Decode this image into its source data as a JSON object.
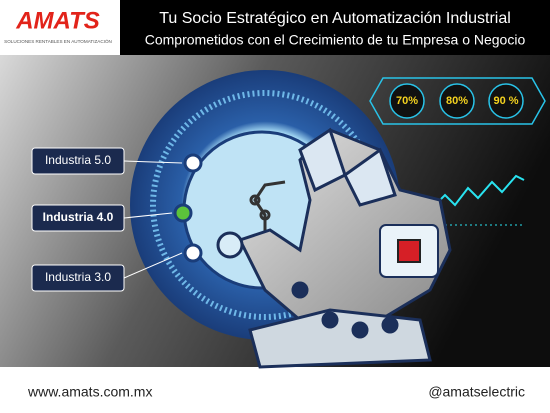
{
  "header": {
    "logo": "AMATS",
    "logo_tagline": "SOLUCIONES RENTABLES EN AUTOMATIZACIÓN",
    "title": "Tu Socio Estratégico en Automatización Industrial",
    "subtitle": "Comprometidos con el Crecimiento de tu Empresa o Negocio"
  },
  "badges": [
    "70%",
    "80%",
    "90 %"
  ],
  "levels": [
    "Industria 5.0",
    "Industria 4.0",
    "Industria 3.0"
  ],
  "footer": {
    "website": "www.amats.com.mx",
    "social": "@amatselectric"
  }
}
